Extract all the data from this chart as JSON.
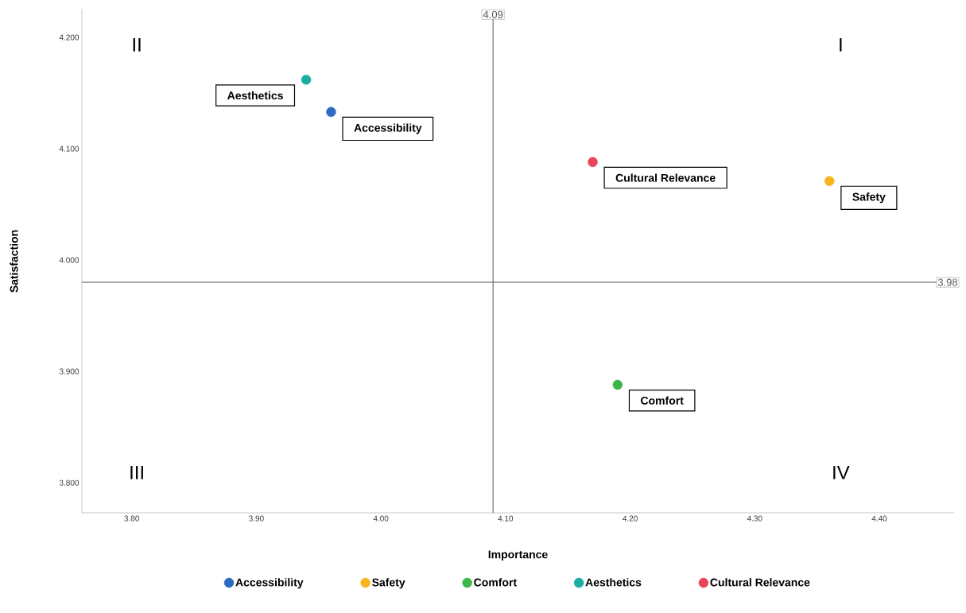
{
  "chart_data": {
    "type": "scatter",
    "xlabel": "Importance",
    "ylabel": "Satisfaction",
    "xlim": [
      3.76,
      4.46
    ],
    "ylim": [
      3.773,
      4.225
    ],
    "xticks": [
      {
        "value": 3.8,
        "label": "3.80"
      },
      {
        "value": 3.9,
        "label": "3.90"
      },
      {
        "value": 4.0,
        "label": "4.00"
      },
      {
        "value": 4.1,
        "label": "4.10"
      },
      {
        "value": 4.2,
        "label": "4.20"
      },
      {
        "value": 4.3,
        "label": "4.30"
      },
      {
        "value": 4.4,
        "label": "4.40"
      }
    ],
    "yticks": [
      {
        "value": 3.8,
        "label": "3.800"
      },
      {
        "value": 3.9,
        "label": "3.900"
      },
      {
        "value": 4.0,
        "label": "4.000"
      },
      {
        "value": 4.1,
        "label": "4.100"
      },
      {
        "value": 4.2,
        "label": "4.200"
      }
    ],
    "series": [
      {
        "name": "Accessibility",
        "color": "#2e6bc0",
        "x": [
          3.96
        ],
        "values": [
          4.133
        ]
      },
      {
        "name": "Safety",
        "color": "#f9b51e",
        "x": [
          4.36
        ],
        "values": [
          4.071
        ]
      },
      {
        "name": "Comfort",
        "color": "#3cb54a",
        "x": [
          4.19
        ],
        "values": [
          3.888
        ]
      },
      {
        "name": "Aesthetics",
        "color": "#1aaea0",
        "x": [
          3.94
        ],
        "values": [
          4.162
        ]
      },
      {
        "name": "Cultural Relevance",
        "color": "#e8445a",
        "x": [
          4.17
        ],
        "values": [
          4.088
        ]
      }
    ],
    "ref_lines": [
      {
        "axis": "x",
        "value": 4.09,
        "label": "4.09",
        "color": "#555555"
      },
      {
        "axis": "y",
        "value": 3.98,
        "label": "3.98",
        "color": "#555555"
      }
    ],
    "annotations": [
      "I",
      "II",
      "III",
      "IV"
    ],
    "legend": "bottom",
    "grid": false
  }
}
